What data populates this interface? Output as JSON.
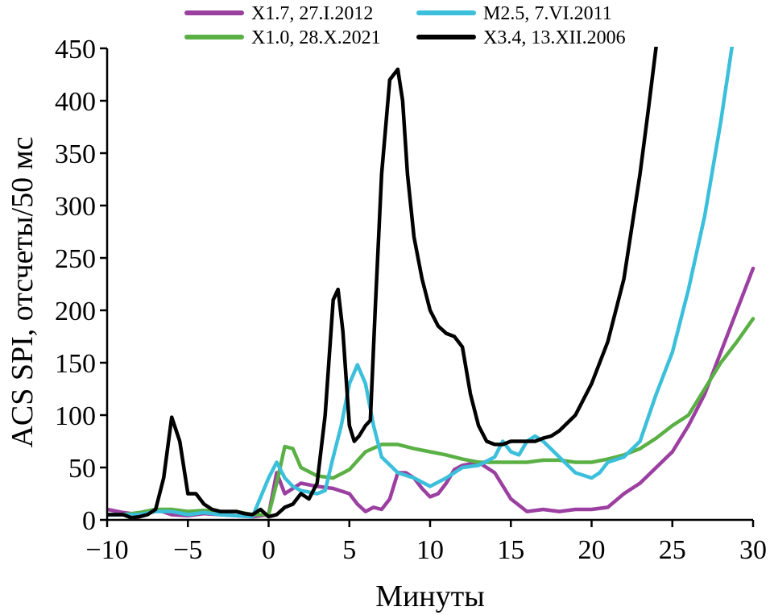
{
  "chart_data": {
    "type": "line",
    "title": "",
    "xlabel": "Минуты",
    "ylabel": "ACS SPI, отсчеты/50 мс",
    "xlim": [
      -10,
      30
    ],
    "ylim": [
      0,
      450
    ],
    "xticks": [
      -10,
      -5,
      0,
      5,
      10,
      15,
      20,
      25,
      30
    ],
    "yticks": [
      0,
      50,
      100,
      150,
      200,
      250,
      300,
      350,
      400,
      450
    ],
    "xtick_labels": [
      "−10",
      "−5",
      "0",
      "5",
      "10",
      "15",
      "20",
      "25",
      "30"
    ],
    "ytick_labels": [
      "0",
      "50",
      "100",
      "150",
      "200",
      "250",
      "300",
      "350",
      "400",
      "450"
    ],
    "grid": false,
    "legend_position": "top",
    "series": [
      {
        "name": "X1.7, 27.I.2012",
        "color": "#9b3fa0",
        "x": [
          -10,
          -9,
          -8,
          -7,
          -6,
          -5,
          -4,
          -3,
          -2,
          -1,
          0,
          0.5,
          1,
          2,
          3,
          4,
          5,
          5.5,
          6,
          6.5,
          7,
          7.5,
          8,
          8.5,
          9,
          9.5,
          10,
          10.5,
          11,
          11.5,
          12,
          13,
          14,
          15,
          16,
          17,
          18,
          19,
          20,
          21,
          22,
          23,
          24,
          25,
          26,
          27,
          28,
          29,
          30
        ],
        "values": [
          10,
          7,
          5,
          10,
          5,
          4,
          6,
          5,
          4,
          3,
          5,
          45,
          25,
          35,
          32,
          30,
          25,
          15,
          8,
          12,
          10,
          20,
          45,
          45,
          40,
          30,
          22,
          25,
          35,
          48,
          52,
          55,
          45,
          20,
          8,
          10,
          8,
          10,
          10,
          12,
          25,
          35,
          50,
          65,
          90,
          120,
          160,
          200,
          240
        ]
      },
      {
        "name": "X1.0, 28.X.2021",
        "color": "#5ab045",
        "x": [
          -10,
          -9,
          -8,
          -7,
          -6,
          -5,
          -4,
          -3,
          -2,
          -1,
          0,
          0.5,
          1,
          1.5,
          2,
          3,
          4,
          5,
          6,
          7,
          8,
          9,
          10,
          11,
          12,
          13,
          14,
          15,
          16,
          17,
          18,
          19,
          20,
          21,
          22,
          23,
          24,
          25,
          26,
          27,
          28,
          29,
          30
        ],
        "values": [
          5,
          5,
          7,
          10,
          10,
          8,
          9,
          8,
          8,
          5,
          5,
          35,
          70,
          68,
          50,
          42,
          40,
          48,
          65,
          72,
          72,
          68,
          65,
          62,
          58,
          55,
          55,
          55,
          55,
          57,
          57,
          55,
          55,
          58,
          62,
          68,
          78,
          90,
          100,
          125,
          150,
          170,
          192
        ]
      },
      {
        "name": "M2.5, 7.VI.2011",
        "color": "#3bbfdb",
        "x": [
          -10,
          -9,
          -8,
          -7,
          -6,
          -5,
          -4,
          -3,
          -2,
          -1,
          0,
          0.5,
          1,
          1.5,
          2,
          3,
          3.5,
          4,
          4.5,
          5,
          5.5,
          6,
          6.5,
          7,
          8,
          9,
          10,
          11,
          12,
          13,
          14,
          14.5,
          15,
          15.5,
          16,
          16.5,
          17,
          18,
          19,
          20,
          20.5,
          21,
          22,
          23,
          24,
          25,
          26,
          27,
          28,
          28.7
        ],
        "values": [
          5,
          5,
          5,
          8,
          8,
          5,
          7,
          5,
          4,
          3,
          40,
          55,
          40,
          32,
          28,
          25,
          28,
          60,
          90,
          130,
          148,
          130,
          90,
          60,
          45,
          40,
          32,
          40,
          50,
          52,
          60,
          75,
          65,
          62,
          75,
          80,
          75,
          60,
          45,
          40,
          45,
          55,
          60,
          75,
          120,
          160,
          220,
          290,
          380,
          452
        ]
      },
      {
        "name": "X3.4, 13.XII.2006",
        "color": "#000000",
        "x": [
          -10,
          -9,
          -8.5,
          -8,
          -7.5,
          -7,
          -6.5,
          -6,
          -5.5,
          -5,
          -4.5,
          -4,
          -3.5,
          -3,
          -2.5,
          -2,
          -1.5,
          -1,
          -0.5,
          0,
          0.5,
          1,
          1.5,
          2,
          2.5,
          3,
          3.5,
          4,
          4.3,
          4.6,
          5,
          5.3,
          5.6,
          6,
          6.3,
          6.6,
          7,
          7.5,
          8,
          8.3,
          8.6,
          9,
          9.5,
          10,
          10.5,
          11,
          11.5,
          12,
          12.5,
          13,
          13.5,
          14,
          14.5,
          15,
          15.5,
          16,
          16.5,
          17,
          17.5,
          18,
          19,
          20,
          21,
          22,
          23,
          23.5,
          24
        ],
        "values": [
          5,
          5,
          2,
          3,
          5,
          10,
          40,
          98,
          75,
          25,
          25,
          15,
          10,
          8,
          8,
          8,
          6,
          5,
          10,
          3,
          5,
          12,
          15,
          25,
          20,
          35,
          100,
          210,
          220,
          180,
          90,
          75,
          80,
          90,
          95,
          200,
          330,
          420,
          430,
          400,
          330,
          270,
          230,
          200,
          185,
          178,
          175,
          165,
          120,
          90,
          75,
          72,
          72,
          75,
          75,
          75,
          75,
          78,
          80,
          85,
          100,
          130,
          170,
          230,
          330,
          390,
          452
        ]
      }
    ]
  }
}
